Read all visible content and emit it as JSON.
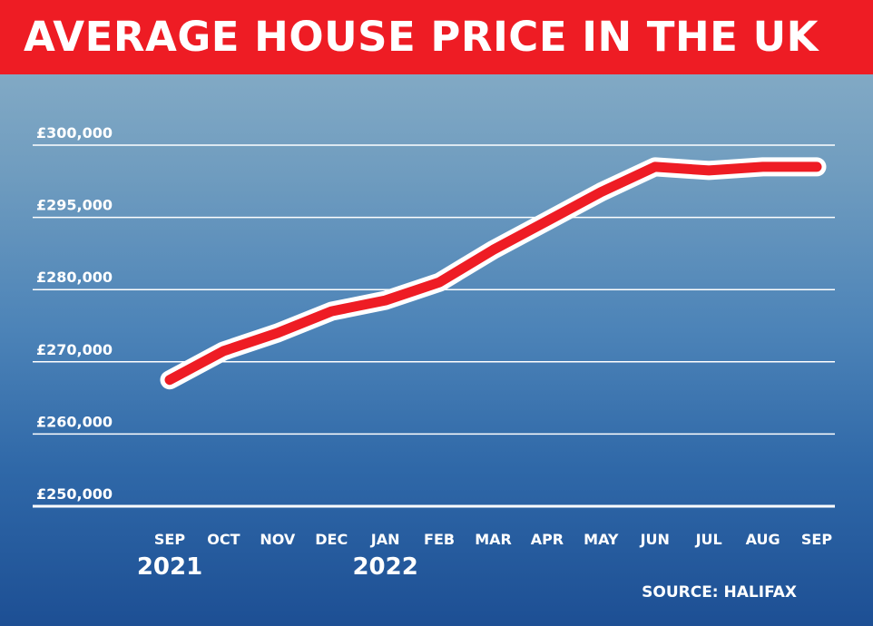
{
  "header": {
    "title": "AVERAGE HOUSE PRICE IN THE UK"
  },
  "source": "SOURCE: HALIFAX",
  "colors": {
    "title_bar": "#ee1c24",
    "line": "#ee1c24",
    "line_outline": "#ffffff",
    "grid": "#ffffff"
  },
  "chart_data": {
    "type": "line",
    "title": "AVERAGE HOUSE PRICE IN THE UK",
    "categories": [
      "SEP",
      "OCT",
      "NOV",
      "DEC",
      "JAN",
      "FEB",
      "MAR",
      "APR",
      "MAY",
      "JUN",
      "JUL",
      "AUG",
      "SEP"
    ],
    "year_labels": [
      {
        "index": 0,
        "label": "2021"
      },
      {
        "index": 4,
        "label": "2022"
      }
    ],
    "y_tick_labels": [
      "£250,000",
      "£260,000",
      "£270,000",
      "£280,000",
      "£295,000",
      "£300,000"
    ],
    "series": [
      {
        "values": [
          267500,
          271500,
          274000,
          277000,
          278500,
          281000,
          285500,
          289500,
          293500,
          297000,
          296500,
          297000,
          297000
        ]
      }
    ],
    "ylim": [
      250000,
      300000
    ],
    "grid": true,
    "legend": "none"
  }
}
